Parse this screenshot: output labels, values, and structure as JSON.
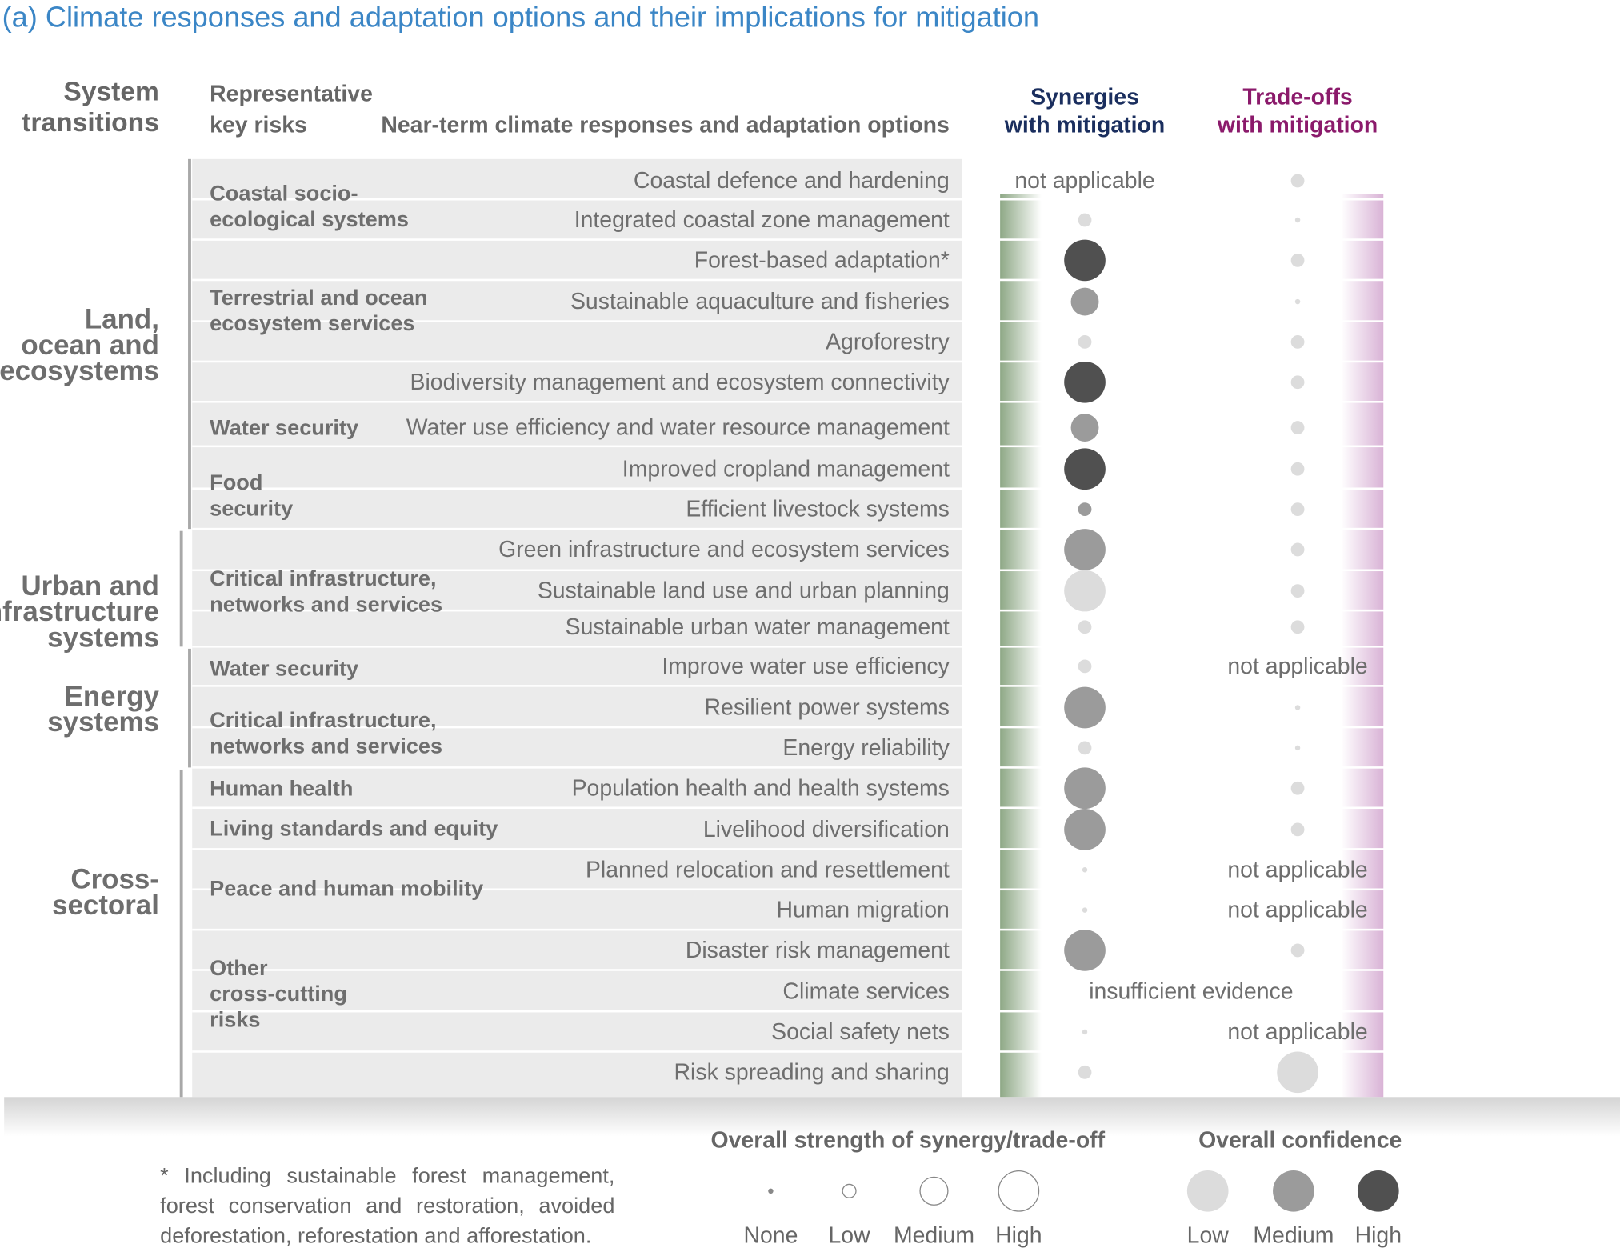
{
  "title": "(a) Climate responses and adaptation options and their implications for mitigation",
  "headers": {
    "system_transitions": [
      "System",
      "transitions"
    ],
    "key_risks": [
      "Representative",
      "key risks"
    ],
    "options": "Near-term climate responses and adaptation options",
    "synergies": [
      "Synergies",
      "with mitigation"
    ],
    "tradeoffs": [
      "Trade-offs",
      "with mitigation"
    ]
  },
  "systems": [
    {
      "lines": [
        "Land,",
        "ocean and",
        "ecosystems"
      ]
    },
    {
      "lines": [
        "Urban and",
        "infrastructure",
        "systems"
      ]
    },
    {
      "lines": [
        "Energy",
        "systems"
      ]
    },
    {
      "lines": [
        "Cross-",
        "sectoral"
      ]
    }
  ],
  "risks": [
    {
      "lines": [
        "Coastal socio-",
        "ecological systems"
      ]
    },
    {
      "lines": [
        "Terrestrial and ocean",
        "ecosystem services"
      ]
    },
    {
      "lines": [
        "Water security"
      ]
    },
    {
      "lines": [
        "Food",
        "security"
      ]
    },
    {
      "lines": [
        "Critical infrastructure,",
        "networks and services"
      ]
    },
    {
      "lines": [
        "Water security"
      ]
    },
    {
      "lines": [
        "Critical infrastructure,",
        "networks and services"
      ]
    },
    {
      "lines": [
        "Human health"
      ]
    },
    {
      "lines": [
        "Living standards and equity"
      ]
    },
    {
      "lines": [
        "Peace and human mobility"
      ]
    },
    {
      "lines": [
        "Other",
        "cross-cutting",
        "risks"
      ]
    }
  ],
  "options": [
    {
      "label": "Coastal defence and hardening",
      "synergy": {
        "text": "not applicable"
      },
      "tradeoff": {
        "strength": "low",
        "confidence": "low"
      }
    },
    {
      "label": "Integrated coastal zone management",
      "synergy": {
        "strength": "low",
        "confidence": "low"
      },
      "tradeoff": {
        "strength": "none",
        "confidence": "low"
      }
    },
    {
      "label": "Forest-based adaptation*",
      "synergy": {
        "strength": "high",
        "confidence": "high"
      },
      "tradeoff": {
        "strength": "low",
        "confidence": "low"
      }
    },
    {
      "label": "Sustainable aquaculture and fisheries",
      "synergy": {
        "strength": "medium",
        "confidence": "medium"
      },
      "tradeoff": {
        "strength": "none",
        "confidence": "low"
      }
    },
    {
      "label": "Agroforestry",
      "synergy": {
        "strength": "low",
        "confidence": "low"
      },
      "tradeoff": {
        "strength": "low",
        "confidence": "low"
      }
    },
    {
      "label": "Biodiversity management and ecosystem connectivity",
      "synergy": {
        "strength": "high",
        "confidence": "high"
      },
      "tradeoff": {
        "strength": "low",
        "confidence": "low"
      }
    },
    {
      "label": "Water use efficiency and water resource management",
      "synergy": {
        "strength": "medium",
        "confidence": "medium"
      },
      "tradeoff": {
        "strength": "low",
        "confidence": "low"
      }
    },
    {
      "label": "Improved cropland management",
      "synergy": {
        "strength": "high",
        "confidence": "high"
      },
      "tradeoff": {
        "strength": "low",
        "confidence": "low"
      }
    },
    {
      "label": "Efficient livestock systems",
      "synergy": {
        "strength": "low",
        "confidence": "medium"
      },
      "tradeoff": {
        "strength": "low",
        "confidence": "low"
      }
    },
    {
      "label": "Green infrastructure and ecosystem services",
      "synergy": {
        "strength": "high",
        "confidence": "medium"
      },
      "tradeoff": {
        "strength": "low",
        "confidence": "low"
      }
    },
    {
      "label": "Sustainable land use and urban planning",
      "synergy": {
        "strength": "high",
        "confidence": "low"
      },
      "tradeoff": {
        "strength": "low",
        "confidence": "low"
      }
    },
    {
      "label": "Sustainable urban water management",
      "synergy": {
        "strength": "low",
        "confidence": "low"
      },
      "tradeoff": {
        "strength": "low",
        "confidence": "low"
      }
    },
    {
      "label": "Improve water use efficiency",
      "synergy": {
        "strength": "low",
        "confidence": "low"
      },
      "tradeoff": {
        "text": "not applicable"
      }
    },
    {
      "label": "Resilient power systems",
      "synergy": {
        "strength": "high",
        "confidence": "medium"
      },
      "tradeoff": {
        "strength": "none",
        "confidence": "low"
      }
    },
    {
      "label": "Energy reliability",
      "synergy": {
        "strength": "low",
        "confidence": "low"
      },
      "tradeoff": {
        "strength": "none",
        "confidence": "low"
      }
    },
    {
      "label": "Population health and health systems",
      "synergy": {
        "strength": "high",
        "confidence": "medium"
      },
      "tradeoff": {
        "strength": "low",
        "confidence": "low"
      }
    },
    {
      "label": "Livelihood diversification",
      "synergy": {
        "strength": "high",
        "confidence": "medium"
      },
      "tradeoff": {
        "strength": "low",
        "confidence": "low"
      }
    },
    {
      "label": "Planned relocation and resettlement",
      "synergy": {
        "strength": "none",
        "confidence": "low"
      },
      "tradeoff": {
        "text": "not applicable"
      }
    },
    {
      "label": "Human migration",
      "synergy": {
        "strength": "none",
        "confidence": "low"
      },
      "tradeoff": {
        "text": "not applicable"
      }
    },
    {
      "label": "Disaster risk management",
      "synergy": {
        "strength": "high",
        "confidence": "medium"
      },
      "tradeoff": {
        "strength": "low",
        "confidence": "low"
      }
    },
    {
      "label": "Climate services",
      "shared_text": "insufficient evidence"
    },
    {
      "label": "Social safety nets",
      "synergy": {
        "strength": "none",
        "confidence": "low"
      },
      "tradeoff": {
        "text": "not applicable"
      }
    },
    {
      "label": "Risk spreading and sharing",
      "synergy": {
        "strength": "low",
        "confidence": "low"
      },
      "tradeoff": {
        "strength": "high",
        "confidence": "low"
      }
    }
  ],
  "footnote": "* Including sustainable forest management, forest conservation and restoration, avoided deforestation, reforestation and afforestation.",
  "legend": {
    "strength": {
      "title": "Overall strength of synergy/trade-off",
      "levels": [
        "None",
        "Low",
        "Medium",
        "High"
      ]
    },
    "confidence": {
      "title": "Overall confidence",
      "levels": [
        "Low",
        "Medium",
        "High"
      ]
    }
  },
  "colors": {
    "title": "#3b86c6",
    "synergy_header": "#1a2e5e",
    "tradeoff_header": "#8b1a6b",
    "confidence_low": "#dcdcdc",
    "confidence_medium": "#9b9b9b",
    "confidence_high": "#505050",
    "synergy_band": "#8ea886",
    "tradeoff_band": "#d9b3d6"
  }
}
